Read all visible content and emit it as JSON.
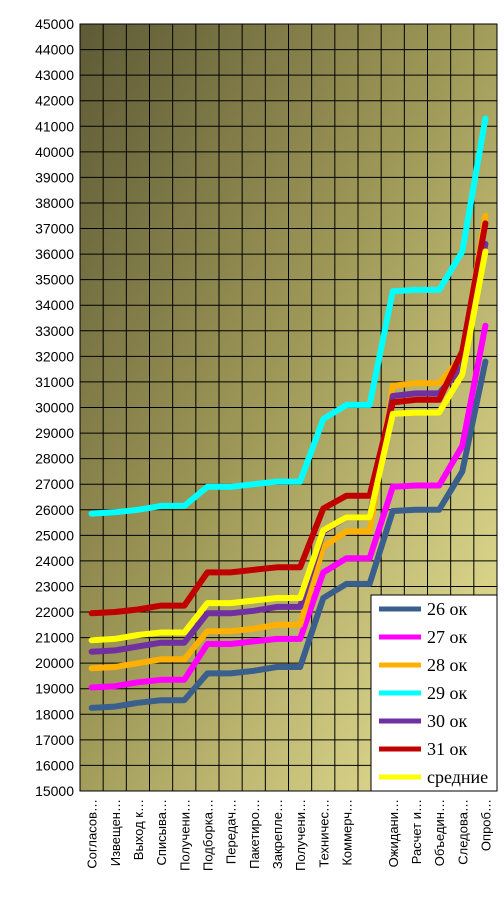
{
  "chart_data": {
    "type": "line",
    "ylim": [
      15000,
      45000
    ],
    "ytick_step": 1000,
    "grid": true,
    "legend_position": "bottom-right",
    "x": [
      "Согласов…",
      "Извещен…",
      "Выход к…",
      "Списыва…",
      "Получени…",
      "Подборка…",
      "Передач…",
      "Пакетиро…",
      "Закрепле…",
      "Получени…",
      "Техничес…",
      "Коммерч…",
      "",
      "Ожидани…",
      "Расчет и…",
      "Объедин…",
      "Следова…",
      "Опроб…"
    ],
    "series": [
      {
        "name": "26 ок",
        "color": "#3b5f8c",
        "values": [
          18250,
          18300,
          18450,
          18550,
          18550,
          19600,
          19600,
          19700,
          19850,
          19850,
          22550,
          23100,
          23100,
          25950,
          26000,
          26000,
          27500,
          31800
        ]
      },
      {
        "name": "27 ок",
        "color": "#ff00ff",
        "values": [
          19050,
          19100,
          19250,
          19350,
          19350,
          20750,
          20750,
          20850,
          20950,
          20950,
          23550,
          24100,
          24100,
          26900,
          26950,
          26950,
          28500,
          33200
        ]
      },
      {
        "name": "28 ок",
        "color": "#ffb000",
        "values": [
          19800,
          19850,
          20000,
          20150,
          20150,
          21250,
          21250,
          21350,
          21500,
          21500,
          24550,
          25150,
          25150,
          30850,
          30950,
          30950,
          32000,
          37500
        ]
      },
      {
        "name": "29 ок",
        "color": "#00ffff",
        "values": [
          25850,
          25900,
          26000,
          26150,
          26150,
          26900,
          26900,
          27000,
          27100,
          27100,
          29550,
          30100,
          30100,
          34550,
          34600,
          34600,
          36100,
          41300
        ]
      },
      {
        "name": "30 ок",
        "color": "#7030a0",
        "values": [
          20450,
          20500,
          20650,
          20800,
          20800,
          21950,
          21950,
          22050,
          22200,
          22200,
          25150,
          25700,
          25700,
          30450,
          30550,
          30550,
          31600,
          36400
        ]
      },
      {
        "name": "31 ок",
        "color": "#c00000",
        "values": [
          21950,
          22000,
          22100,
          22250,
          22250,
          23550,
          23550,
          23650,
          23750,
          23750,
          26050,
          26550,
          26550,
          30200,
          30300,
          30300,
          32200,
          37200
        ]
      },
      {
        "name": "средние",
        "color": "#ffff00",
        "values": [
          20900,
          20950,
          21100,
          21200,
          21200,
          22350,
          22350,
          22450,
          22550,
          22550,
          25200,
          25700,
          25700,
          29750,
          29800,
          29800,
          31300,
          36100
        ]
      }
    ]
  }
}
